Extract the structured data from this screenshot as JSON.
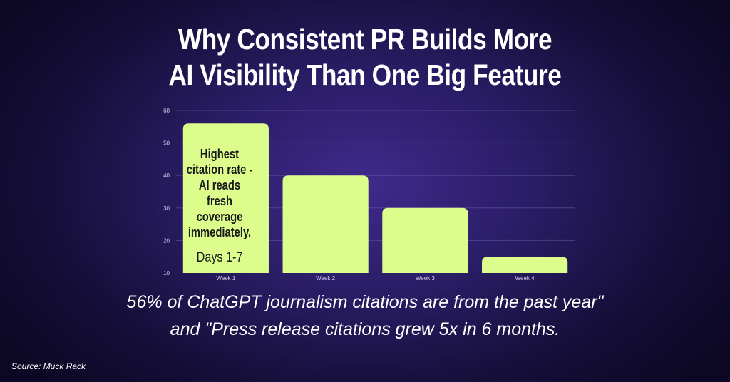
{
  "title": {
    "line1": "Why Consistent PR Builds More",
    "line2": "AI Visibility Than One Big Feature"
  },
  "chart_data": {
    "type": "bar",
    "categories": [
      "Week 1",
      "Week 2",
      "Week 3",
      "Week 4"
    ],
    "values": [
      56,
      40,
      30,
      15
    ],
    "ylim": [
      10,
      60
    ],
    "yticks": [
      10,
      20,
      30,
      40,
      50,
      60
    ],
    "grid": true,
    "legend": "none",
    "bar_color": "#dcfc8c",
    "annotations": [
      {
        "category": "Week 1",
        "text": "Highest citation rate - AI reads fresh coverage immediately.",
        "sub": "Days 1-7"
      }
    ]
  },
  "caption": {
    "line1": "56% of ChatGPT journalism citations are from the past year\"",
    "line2": "and \"Press release citations grew 5x in 6 months."
  },
  "source": "Source: Muck Rack"
}
